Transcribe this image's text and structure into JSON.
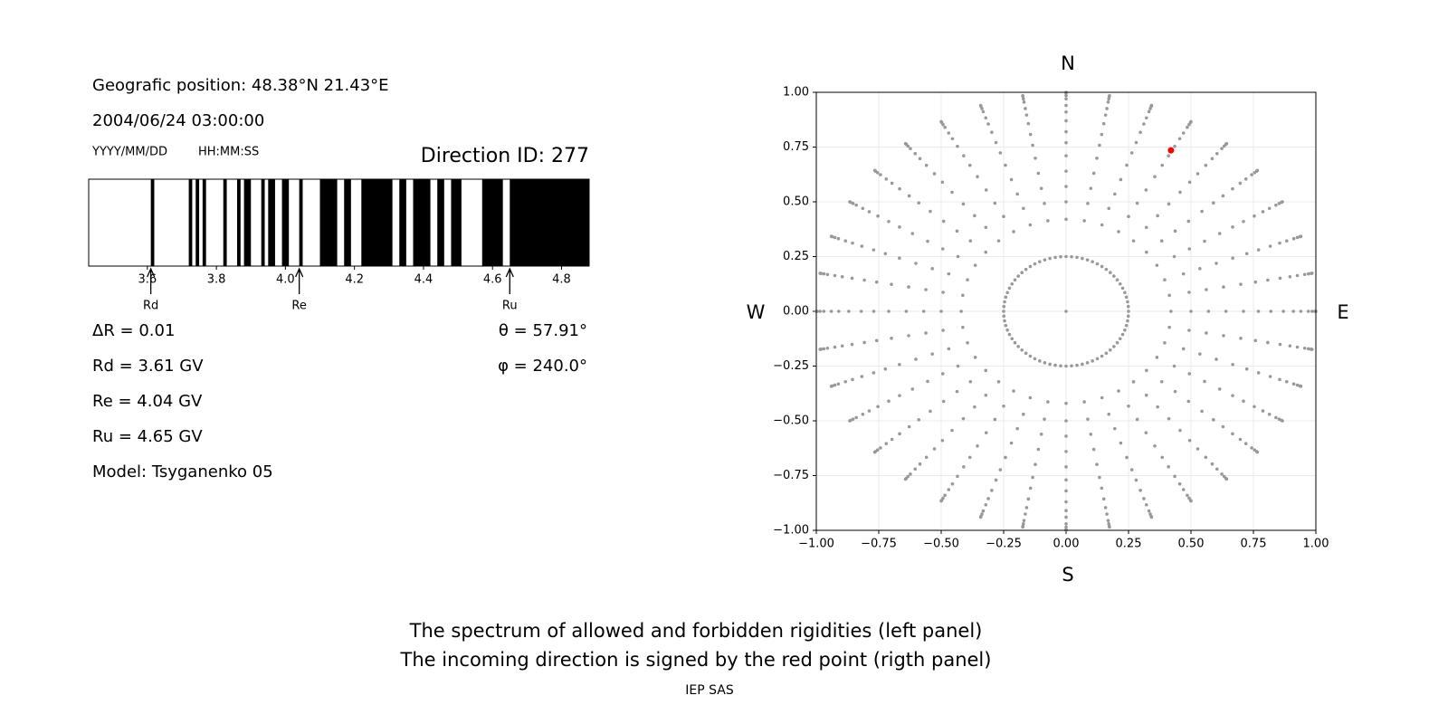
{
  "chart_data": [
    {
      "type": "spectrum",
      "position": "Geografic position: 48.38°N 21.43°E",
      "datetime": "2004/06/24 03:00:00",
      "date_format": "YYYY/MM/DD",
      "time_format": "HH:MM:SS",
      "direction_id": "Direction ID: 277",
      "xlim": [
        3.43,
        4.88
      ],
      "xticks": [
        3.6,
        3.8,
        {
          "value": 4,
          "label": "4.0"
        },
        4.2,
        4.4,
        4.6,
        4.8
      ],
      "color": "#000000",
      "forbidden": [
        [
          3.61,
          3.62
        ],
        [
          3.72,
          3.73
        ],
        [
          3.74,
          3.75
        ],
        [
          3.76,
          3.77
        ],
        [
          3.82,
          3.83
        ],
        [
          3.86,
          3.87
        ],
        [
          3.88,
          3.9
        ],
        [
          3.93,
          3.94
        ],
        [
          3.95,
          3.97
        ],
        [
          3.99,
          4.01
        ],
        [
          4.04,
          4.05
        ],
        [
          4.1,
          4.15
        ],
        [
          4.17,
          4.19
        ],
        [
          4.22,
          4.31
        ],
        [
          4.33,
          4.35
        ],
        [
          4.37,
          4.42
        ],
        [
          4.44,
          4.46
        ],
        [
          4.48,
          4.51
        ],
        [
          4.57,
          4.63
        ],
        [
          4.65,
          4.88
        ]
      ],
      "markers": [
        {
          "label": "Rd",
          "value": 3.61
        },
        {
          "label": "Re",
          "value": 4.04
        },
        {
          "label": "Ru",
          "value": 4.65
        }
      ],
      "info_lines": [
        "ΔR = 0.01",
        "Rd = 3.61 GV",
        "Re = 4.04 GV",
        "Ru = 4.65 GV",
        "Model: Tsyganenko 05"
      ],
      "angle_lines": [
        "θ = 57.91°",
        "φ = 240.0°"
      ]
    },
    {
      "type": "scatter",
      "xlim": [
        -1,
        1
      ],
      "ylim": [
        -1,
        1
      ],
      "xticks": [
        {
          "value": -1,
          "label": "−1.00"
        },
        {
          "value": -0.75,
          "label": "−0.75"
        },
        {
          "value": -0.5,
          "label": "−0.50"
        },
        {
          "value": -0.25,
          "label": "−0.25"
        },
        {
          "value": 0,
          "label": "0.00"
        },
        {
          "value": 0.25,
          "label": "0.25"
        },
        {
          "value": 0.5,
          "label": "0.50"
        },
        {
          "value": 0.75,
          "label": "0.75"
        },
        {
          "value": 1,
          "label": "1.00"
        }
      ],
      "yticks": [
        {
          "value": -1,
          "label": "−1.00"
        },
        {
          "value": -0.75,
          "label": "−0.75"
        },
        {
          "value": -0.5,
          "label": "−0.50"
        },
        {
          "value": -0.25,
          "label": "−0.25"
        },
        {
          "value": 0,
          "label": "0.00"
        },
        {
          "value": 0.25,
          "label": "0.25"
        },
        {
          "value": 0.5,
          "label": "0.50"
        },
        {
          "value": 0.75,
          "label": "0.75"
        },
        {
          "value": 1,
          "label": "1.00"
        }
      ],
      "grid": true,
      "compass": {
        "north": "N",
        "south": "S",
        "west": "W",
        "east": "E"
      },
      "color": "#999999",
      "point_groups": [
        {
          "radii": [
            0
          ],
          "azimuths": [
            0
          ]
        },
        {
          "radii": [
            0.25
          ],
          "azimuths": [
            0,
            5,
            10,
            15,
            20,
            25,
            30,
            35,
            40,
            45,
            50,
            55,
            60,
            65,
            70,
            75,
            80,
            85,
            90,
            95,
            100,
            105,
            110,
            115,
            120,
            125,
            130,
            135,
            140,
            145,
            150,
            155,
            160,
            165,
            170,
            175,
            180,
            185,
            190,
            195,
            200,
            205,
            210,
            215,
            220,
            225,
            230,
            235,
            240,
            245,
            250,
            255,
            260,
            265,
            270,
            275,
            280,
            285,
            290,
            295,
            300,
            305,
            310,
            315,
            320,
            325,
            330,
            335,
            340,
            345,
            350,
            355
          ]
        },
        {
          "radii": [
            0.42,
            0.5,
            0.57,
            0.64,
            0.71,
            0.77,
            0.82,
            0.87,
            0.91,
            0.94,
            0.97,
            0.985,
            0.996,
            1
          ],
          "azimuths": [
            0,
            10,
            20,
            30,
            40,
            50,
            60,
            70,
            80,
            90,
            100,
            110,
            120,
            130,
            140,
            150,
            160,
            170,
            180,
            190,
            200,
            210,
            220,
            230,
            240,
            250,
            260,
            270,
            280,
            290,
            300,
            310,
            320,
            330,
            340,
            350
          ]
        }
      ],
      "highlight": {
        "x": 0.42,
        "y": 0.735,
        "color": "#ff0000"
      }
    }
  ],
  "footer": {
    "caption_lines": [
      "The spectrum of allowed and forbidden rigidities (left panel)",
      "The incoming direction is signed by the red point (rigth panel)"
    ],
    "credit": "IEP SAS"
  }
}
